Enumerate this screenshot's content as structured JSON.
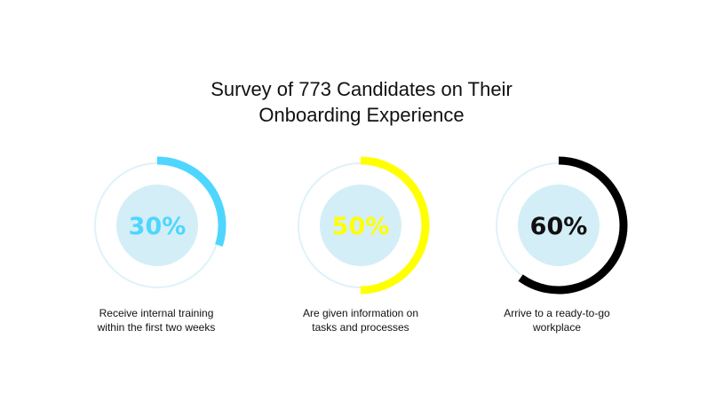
{
  "chart_data": {
    "type": "radial-progress",
    "title_line1": "Survey of 773 Candidates on Their",
    "title_line2": "Onboarding Experience",
    "track_color": "#dff2fa",
    "inner_fill_color": "#d4eef8",
    "items": [
      {
        "value": 30,
        "label": "30%",
        "arc_color": "#4ed6ff",
        "label_color": "#4ed6ff",
        "caption_line1": "Receive internal training",
        "caption_line2": "within the first two weeks"
      },
      {
        "value": 50,
        "label": "50%",
        "arc_color": "#ffff00",
        "label_color": "#ffff00",
        "caption_line1": "Are given information on",
        "caption_line2": "tasks and processes"
      },
      {
        "value": 60,
        "label": "60%",
        "arc_color": "#000000",
        "label_color": "#111111",
        "caption_line1": "Arrive to a ready-to-go",
        "caption_line2": "workplace"
      }
    ]
  }
}
